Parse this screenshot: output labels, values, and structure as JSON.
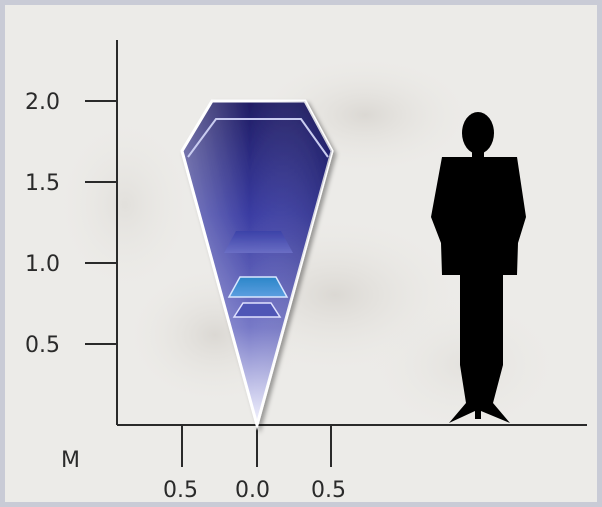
{
  "diagram": {
    "unit_label": "M",
    "y_ticks": [
      {
        "value": 2.0,
        "label": "2.0"
      },
      {
        "value": 1.5,
        "label": "1.5"
      },
      {
        "value": 1.0,
        "label": "1.0"
      },
      {
        "value": 0.5,
        "label": "0.5"
      }
    ],
    "x_ticks": [
      {
        "value": -0.5,
        "label": "0.5"
      },
      {
        "value": 0.0,
        "label": "0.0"
      },
      {
        "value": 0.5,
        "label": "0.5"
      }
    ],
    "colors": {
      "axis": "#2a2a2a",
      "cone_dark": "#1e1a5c",
      "cone_mid": "#3b3e9e",
      "cone_light": "#ffffff",
      "inner_band": "#2a7fc0",
      "silhouette": "#000000"
    },
    "shapes": [
      "cone-icon",
      "person-silhouette-icon"
    ]
  }
}
